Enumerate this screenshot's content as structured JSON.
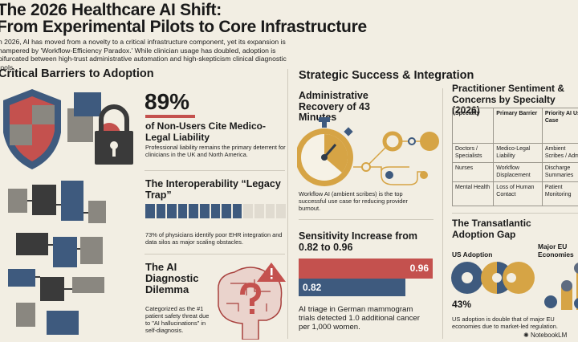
{
  "title": {
    "line1": "The 2026 Healthcare AI Shift:",
    "line2": "From Experimental Pilots to Core Infrastructure"
  },
  "subtitle": "n 2026, AI has moved from a novelty to a critical infrastructure component, yet its expansion is hampered by 'Workflow-Efficiency Paradox.' While clinician usage has doubled, adoption is bifurcated between high-trust administrative automation and high-skepticism clinical diagnostic tools.",
  "left": {
    "section": "Critical Barriers to Adoption",
    "stat": {
      "value": "89%",
      "headline": "of Non-Users Cite Medico-Legal Liability",
      "text": "Professional liability remains the primary deterrent for clinicians in the UK and North America."
    },
    "interop": {
      "headline": "The Interoperability “Legacy Trap”",
      "text": "73% of physicians identify poor EHR integration and data silos as major scaling obstacles.",
      "percent": 73
    },
    "dilemma": {
      "headline": "The AI Diagnostic Dilemma",
      "text": "Categorized as the #1 patient safety threat due to \"AI hallucinations\" in self-diagnosis."
    }
  },
  "middle": {
    "section": "Strategic Success & Integration",
    "recovery": {
      "headline": "Administrative Recovery of 43 Minutes",
      "text": "Workflow AI (ambient scribes) is the top successful use case for reducing provider burnout."
    },
    "sensitivity": {
      "headline": "Sensitivity Increase from 0.82 to 0.96",
      "before": "0.82",
      "after": "0.96",
      "text": "AI triage in German mammogram trials detected 1.0 additional cancer per 1,000 women."
    }
  },
  "right": {
    "table_title": "Practitioner Sentiment & Concerns by Specialty (2026)",
    "columns": [
      "Specialty",
      "Primary Barrier",
      "Priority AI Use Case"
    ],
    "rows": [
      [
        "Doctors / Specialists",
        "Medico-Legal Liability",
        "Ambient Scribes / Admin"
      ],
      [
        "Nurses",
        "Workflow Displacement",
        "Discharge Summaries"
      ],
      [
        "Mental Health",
        "Loss of Human Contact",
        "Patient Monitoring"
      ]
    ],
    "gap": {
      "headline": "The Transatlantic Adoption Gap",
      "us_label": "US Adoption",
      "eu_label": "Major EU Economies",
      "us_value": "43%",
      "text": "US adoption is double that of major EU economies due to market-led regulation."
    },
    "footer": "NotebookLM"
  },
  "colors": {
    "background": "#f2eee3",
    "red": "#c4514e",
    "navy": "#3e5a7e",
    "gold": "#d6a445"
  }
}
